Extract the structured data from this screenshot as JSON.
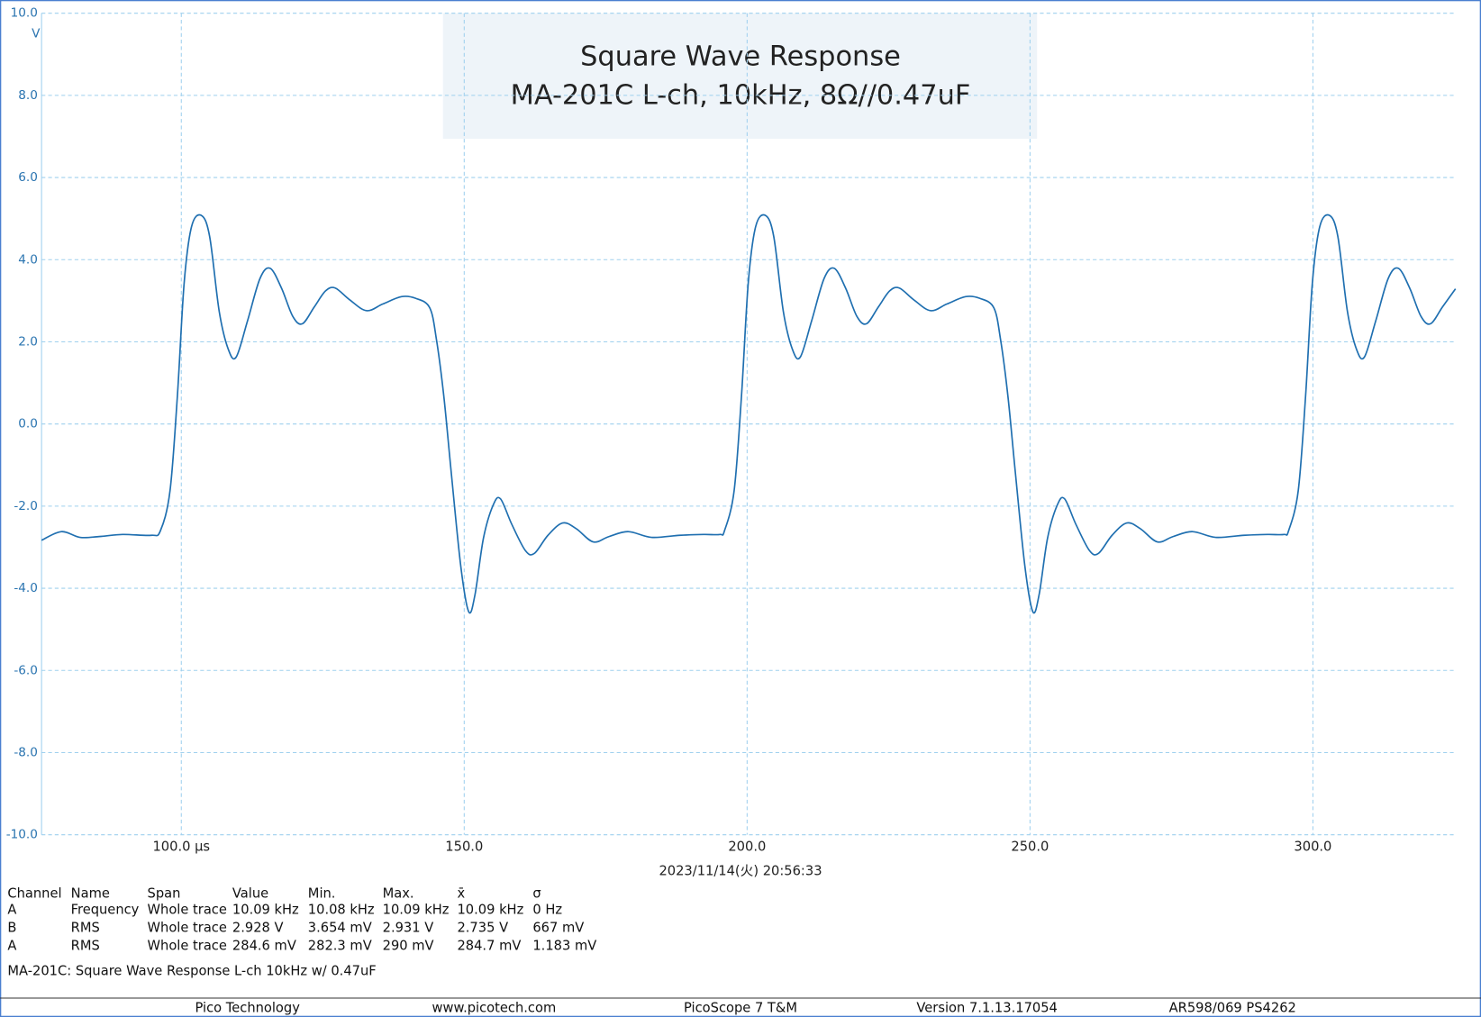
{
  "chart_data": {
    "type": "line",
    "title": "Square Wave Response",
    "subtitle": "MA-201C L-ch, 10kHz, 8Ω//0.47uF",
    "y_unit": "V",
    "x_label": "2023/11/14(火) 20:56:33",
    "color": "#1f6fb0",
    "grid": true,
    "xlim": [
      75.3,
      325.2
    ],
    "ylim": [
      -10,
      10
    ],
    "xticks": [
      {
        "value": 100,
        "label": "100.0 µs"
      },
      {
        "value": 150,
        "label": "150.0"
      },
      {
        "value": 200,
        "label": "200.0"
      },
      {
        "value": 250,
        "label": "250.0"
      },
      {
        "value": 300,
        "label": "300.0"
      }
    ],
    "yticks": [
      {
        "value": 10,
        "label": "10.0"
      },
      {
        "value": 8,
        "label": "8.0"
      },
      {
        "value": 6,
        "label": "6.0"
      },
      {
        "value": 4,
        "label": "4.0"
      },
      {
        "value": 2,
        "label": "2.0"
      },
      {
        "value": 0,
        "label": "0.0"
      },
      {
        "value": -2,
        "label": "-2.0"
      },
      {
        "value": -4,
        "label": "-4.0"
      },
      {
        "value": -6,
        "label": "-6.0"
      },
      {
        "value": -8,
        "label": "-8.0"
      },
      {
        "value": -10,
        "label": "-10.0"
      }
    ],
    "x": [
      75.3,
      78.8,
      82.1,
      85.5,
      89.6,
      94.7,
      96.3,
      98.0,
      99.3,
      100.5,
      101.8,
      103.5,
      105.0,
      106.7,
      108.3,
      109.7,
      111.7,
      113.9,
      115.7,
      117.7,
      119.7,
      121.4,
      123.5,
      125.5,
      127.2,
      129.7,
      132.7,
      135.6,
      138.9,
      141.4,
      143.9,
      145.1,
      146.4,
      147.7,
      149.4,
      150.8,
      151.9,
      153.4,
      155.1,
      156.4,
      158.4,
      160.8,
      162.4,
      164.8,
      167.4,
      169.8,
      172.8,
      175.6,
      179.0,
      183.1,
      188.1,
      192.3,
      195.2,
      196.0,
      197.7,
      199.0,
      200.2,
      201.5,
      203.2,
      204.7,
      206.4,
      208.0,
      209.4,
      211.4,
      213.6,
      215.4,
      217.4,
      219.4,
      221.1,
      223.2,
      225.2,
      226.9,
      229.4,
      232.4,
      235.3,
      238.6,
      241.1,
      243.6,
      244.8,
      246.1,
      247.4,
      249.1,
      250.5,
      251.6,
      253.1,
      254.8,
      256.1,
      258.1,
      260.5,
      262.1,
      264.5,
      267.1,
      269.5,
      272.5,
      275.3,
      278.7,
      282.8,
      287.8,
      292.0,
      294.9,
      295.7,
      297.4,
      298.7,
      299.9,
      301.2,
      302.9,
      304.4,
      306.1,
      307.7,
      309.1,
      311.1,
      313.3,
      315.1,
      317.1,
      319.1,
      320.8,
      322.9,
      325.2
    ],
    "values": [
      -2.83,
      -2.62,
      -2.76,
      -2.74,
      -2.69,
      -2.71,
      -2.6,
      -1.63,
      0.67,
      3.43,
      4.8,
      5.08,
      4.57,
      2.74,
      1.82,
      1.63,
      2.51,
      3.54,
      3.79,
      3.31,
      2.62,
      2.44,
      2.85,
      3.24,
      3.31,
      3.03,
      2.76,
      2.92,
      3.1,
      3.06,
      2.83,
      2.05,
      0.67,
      -1.17,
      -3.47,
      -4.57,
      -4.16,
      -2.78,
      -1.98,
      -1.82,
      -2.44,
      -3.08,
      -3.15,
      -2.71,
      -2.41,
      -2.55,
      -2.87,
      -2.74,
      -2.62,
      -2.76,
      -2.71,
      -2.69,
      -2.69,
      -2.6,
      -1.63,
      0.67,
      3.43,
      4.8,
      5.08,
      4.57,
      2.74,
      1.82,
      1.63,
      2.51,
      3.54,
      3.79,
      3.31,
      2.62,
      2.44,
      2.85,
      3.24,
      3.31,
      3.03,
      2.76,
      2.92,
      3.1,
      3.06,
      2.83,
      2.05,
      0.67,
      -1.17,
      -3.47,
      -4.57,
      -4.16,
      -2.78,
      -1.98,
      -1.82,
      -2.44,
      -3.08,
      -3.15,
      -2.71,
      -2.41,
      -2.55,
      -2.87,
      -2.74,
      -2.62,
      -2.76,
      -2.71,
      -2.69,
      -2.69,
      -2.6,
      -1.63,
      0.67,
      3.43,
      4.8,
      5.08,
      4.57,
      2.74,
      1.82,
      1.63,
      2.51,
      3.54,
      3.79,
      3.31,
      2.62,
      2.44,
      2.85,
      3.29
    ]
  },
  "measurements": {
    "columns": [
      "Channel",
      "Name",
      "Span",
      "Value",
      "Min.",
      "Max.",
      "x̄",
      "σ"
    ],
    "rows": [
      [
        "A",
        "Frequency",
        "Whole trace",
        "10.09 kHz",
        "10.08 kHz",
        "10.09 kHz",
        "10.09 kHz",
        "0 Hz"
      ],
      [
        "B",
        "RMS",
        "Whole trace",
        "2.928 V",
        "3.654 mV",
        "2.931 V",
        "2.735 V",
        "667 mV"
      ],
      [
        "A",
        "RMS",
        "Whole trace",
        "284.6 mV",
        "282.3 mV",
        "290 mV",
        "284.7 mV",
        "1.183 mV"
      ]
    ]
  },
  "note": "MA-201C: Square Wave Response L-ch 10kHz w/ 0.47uF",
  "footer": [
    "Pico Technology",
    "www.picotech.com",
    "PicoScope 7 T&M",
    "Version 7.1.13.17054",
    "AR598/069 PS4262"
  ]
}
